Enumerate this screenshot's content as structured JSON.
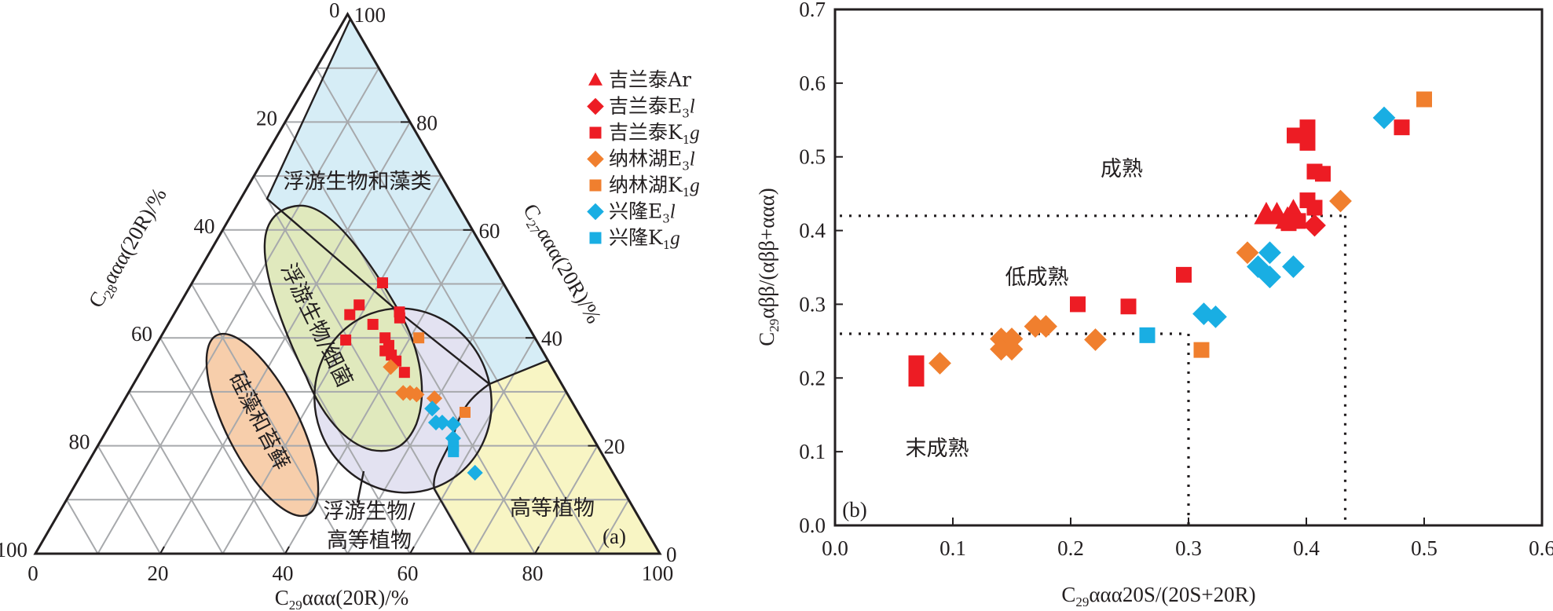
{
  "colors": {
    "red": "#ed1c24",
    "orange": "#f07f2e",
    "cyan": "#19aee3",
    "region_plankton_algae": "#d6edf6",
    "region_plankton_bacteria": "#e0e9bd",
    "region_mixed": "#e3e2f1",
    "region_higher_plants": "#f8f5c4",
    "region_diatoms": "#f7ceab",
    "ink": "#231f20",
    "grid": "#a7a9ac"
  },
  "legend": {
    "items": [
      {
        "label": "吉兰泰Ar",
        "base": "吉兰泰Ar",
        "sub": "",
        "tail": "",
        "color": "red",
        "marker": "triangle"
      },
      {
        "label": "吉兰泰E3l",
        "base": "吉兰泰E",
        "sub": "3",
        "tail": "l",
        "color": "red",
        "marker": "diamond"
      },
      {
        "label": "吉兰泰K1g",
        "base": "吉兰泰K",
        "sub": "1",
        "tail": "g",
        "color": "red",
        "marker": "square"
      },
      {
        "label": "纳林湖E3l",
        "base": "纳林湖E",
        "sub": "3",
        "tail": "l",
        "color": "orange",
        "marker": "diamond"
      },
      {
        "label": "纳林湖K1g",
        "base": "纳林湖K",
        "sub": "1",
        "tail": "g",
        "color": "orange",
        "marker": "square"
      },
      {
        "label": "兴隆E3l",
        "base": "兴隆E",
        "sub": "3",
        "tail": "l",
        "color": "cyan",
        "marker": "diamond"
      },
      {
        "label": "兴隆K1g",
        "base": "兴隆K",
        "sub": "1",
        "tail": "g",
        "color": "cyan",
        "marker": "square"
      }
    ]
  },
  "chart_data": [
    {
      "type": "ternary-scatter",
      "panel_label": "(a)",
      "axes": {
        "bottom": {
          "title_base": "C",
          "title_sub": "29",
          "title_rest": "ααα(20R)/%",
          "ticks": [
            "0",
            "20",
            "40",
            "60",
            "80",
            "100"
          ]
        },
        "left": {
          "title_base": "C",
          "title_sub": "28",
          "title_rest": "ααα(20R)/%",
          "ticks": [
            "0",
            "20",
            "40",
            "60",
            "80",
            "100"
          ]
        },
        "right": {
          "title_base": "C",
          "title_sub": "27",
          "title_rest": "ααα(20R)/%",
          "ticks": [
            "100",
            "80",
            "60",
            "40",
            "20",
            "0"
          ]
        }
      },
      "grid_step": 10,
      "regions": [
        {
          "id": "plankton-algae",
          "label": "浮游生物和藻类",
          "color": "region_plankton_algae"
        },
        {
          "id": "plankton-bacteria",
          "label": "浮游生物/细菌",
          "color": "region_plankton_bacteria"
        },
        {
          "id": "mixed",
          "label_line1": "浮游生物/",
          "label_line2": "高等植物",
          "color": "region_mixed"
        },
        {
          "id": "higher-plants",
          "label": "高等植物",
          "color": "region_higher_plants"
        },
        {
          "id": "diatoms",
          "label": "硅藻和苔藓",
          "color": "region_diatoms"
        }
      ],
      "series": [
        {
          "name": "吉兰泰K1g",
          "marker": "square",
          "color": "red",
          "points": [
            {
              "c27": 50.2,
              "c28": 19.3,
              "c29": 30.5
            },
            {
              "c27": 46.1,
              "c28": 25.1,
              "c29": 28.8
            },
            {
              "c27": 44.3,
              "c28": 27.5,
              "c29": 28.2
            },
            {
              "c27": 44.8,
              "c28": 19.3,
              "c29": 35.9
            },
            {
              "c27": 43.7,
              "c28": 19.8,
              "c29": 36.5
            },
            {
              "c27": 42.5,
              "c28": 24.7,
              "c29": 32.8
            },
            {
              "c27": 39.6,
              "c28": 30.5,
              "c29": 29.9
            },
            {
              "c27": 40.0,
              "c28": 24.0,
              "c29": 36.0
            },
            {
              "c27": 38.6,
              "c28": 24.1,
              "c29": 37.3
            },
            {
              "c27": 37.6,
              "c28": 25.2,
              "c29": 37.2
            },
            {
              "c27": 36.8,
              "c28": 24.6,
              "c29": 38.6
            },
            {
              "c27": 35.7,
              "c28": 24.4,
              "c29": 39.9
            },
            {
              "c27": 33.6,
              "c28": 24.1,
              "c29": 42.3
            }
          ]
        },
        {
          "name": "纳林湖K1g",
          "marker": "square",
          "color": "orange",
          "points": [
            {
              "c27": 40.0,
              "c28": 18.6,
              "c29": 41.4
            },
            {
              "c27": 26.2,
              "c28": 18.1,
              "c29": 55.7
            }
          ]
        },
        {
          "name": "纳林湖E3l",
          "marker": "diamond",
          "color": "orange",
          "points": [
            {
              "c27": 34.6,
              "c28": 25.8,
              "c29": 39.6
            },
            {
              "c27": 29.8,
              "c28": 26.2,
              "c29": 44.0
            },
            {
              "c27": 29.8,
              "c28": 25.1,
              "c29": 45.1
            },
            {
              "c27": 29.5,
              "c28": 24.2,
              "c29": 46.3
            },
            {
              "c27": 28.8,
              "c28": 21.7,
              "c29": 49.5
            }
          ]
        },
        {
          "name": "兴隆E3l",
          "marker": "diamond",
          "color": "cyan",
          "points": [
            {
              "c27": 26.9,
              "c28": 23.0,
              "c29": 50.1
            },
            {
              "c27": 24.3,
              "c28": 23.7,
              "c29": 52.0
            },
            {
              "c27": 24.3,
              "c28": 22.7,
              "c29": 53.0
            },
            {
              "c27": 24.0,
              "c28": 21.1,
              "c29": 54.9
            },
            {
              "c27": 21.4,
              "c28": 22.4,
              "c29": 56.2
            },
            {
              "c27": 15.0,
              "c28": 22.1,
              "c29": 62.9
            }
          ]
        },
        {
          "name": "兴隆K1g",
          "marker": "square",
          "color": "cyan",
          "points": [
            {
              "c27": 19.9,
              "c28": 23.1,
              "c29": 57.0
            },
            {
              "c27": 18.9,
              "c28": 23.6,
              "c29": 57.5
            }
          ]
        }
      ]
    },
    {
      "type": "scatter",
      "panel_label": "(b)",
      "xlabel_base": "C",
      "xlabel_sub": "29",
      "xlabel_rest": "ααα20S/(20S+20R)",
      "ylabel_base": "C",
      "ylabel_sub": "29",
      "ylabel_rest": "αββ/(αββ+ααα)",
      "xlim": [
        0.0,
        0.6
      ],
      "ylim": [
        0.0,
        0.7
      ],
      "xticks": [
        "0.0",
        "0.1",
        "0.2",
        "0.3",
        "0.4",
        "0.5",
        "0.6"
      ],
      "yticks": [
        "0.0",
        "0.1",
        "0.2",
        "0.3",
        "0.4",
        "0.5",
        "0.6",
        "0.7"
      ],
      "thresholds": [
        {
          "x": 0.3,
          "y": 0.26
        },
        {
          "x": 0.433,
          "y": 0.42
        }
      ],
      "zone_labels": {
        "mature": "成熟",
        "low_mature": "低成熟",
        "immature": "末成熟"
      },
      "series": [
        {
          "name": "吉兰泰Ar",
          "marker": "triangle",
          "color": "red",
          "points": [
            [
              0.366,
              0.421
            ],
            [
              0.375,
              0.421
            ],
            [
              0.389,
              0.425
            ],
            [
              0.384,
              0.415
            ]
          ]
        },
        {
          "name": "吉兰泰E3l",
          "marker": "diamond",
          "color": "red",
          "points": [
            [
              0.407,
              0.407
            ]
          ]
        },
        {
          "name": "吉兰泰K1g",
          "marker": "square",
          "color": "red",
          "points": [
            [
              0.069,
              0.22
            ],
            [
              0.069,
              0.199
            ],
            [
              0.206,
              0.3
            ],
            [
              0.249,
              0.297
            ],
            [
              0.296,
              0.34
            ],
            [
              0.385,
              0.41
            ],
            [
              0.393,
              0.413
            ],
            [
              0.401,
              0.441
            ],
            [
              0.407,
              0.431
            ],
            [
              0.407,
              0.48
            ],
            [
              0.414,
              0.477
            ],
            [
              0.39,
              0.529
            ],
            [
              0.401,
              0.54
            ],
            [
              0.401,
              0.519
            ],
            [
              0.481,
              0.54
            ]
          ]
        },
        {
          "name": "纳林湖E3l",
          "marker": "diamond",
          "color": "orange",
          "points": [
            [
              0.089,
              0.22
            ],
            [
              0.141,
              0.253
            ],
            [
              0.15,
              0.253
            ],
            [
              0.141,
              0.239
            ],
            [
              0.15,
              0.239
            ],
            [
              0.17,
              0.27
            ],
            [
              0.179,
              0.27
            ],
            [
              0.221,
              0.252
            ],
            [
              0.35,
              0.37
            ],
            [
              0.429,
              0.44
            ]
          ]
        },
        {
          "name": "纳林湖K1g",
          "marker": "square",
          "color": "orange",
          "points": [
            [
              0.311,
              0.238
            ],
            [
              0.5,
              0.578
            ]
          ]
        },
        {
          "name": "兴隆E3l",
          "marker": "diamond",
          "color": "cyan",
          "points": [
            [
              0.313,
              0.287
            ],
            [
              0.323,
              0.283
            ],
            [
              0.369,
              0.37
            ],
            [
              0.359,
              0.351
            ],
            [
              0.369,
              0.337
            ],
            [
              0.389,
              0.351
            ],
            [
              0.466,
              0.553
            ]
          ]
        },
        {
          "name": "兴隆K1g",
          "marker": "square",
          "color": "cyan",
          "points": [
            [
              0.265,
              0.258
            ]
          ]
        }
      ]
    }
  ]
}
